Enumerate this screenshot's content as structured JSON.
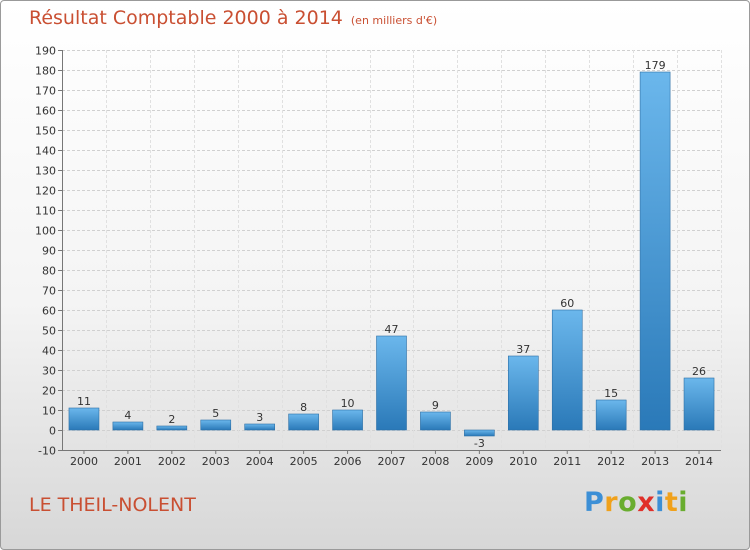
{
  "header": {
    "title": "Résultat Comptable 2000 à 2014",
    "unit": "(en milliers d'€)"
  },
  "footer": {
    "commune": "LE THEIL-NOLENT"
  },
  "logo": {
    "letters": [
      "P",
      "r",
      "o",
      "x",
      "i",
      "t",
      "i"
    ],
    "colors": [
      "#3c8fd6",
      "#f0a11b",
      "#69ad2f",
      "#e0302a",
      "#3c8fd6",
      "#f0a11b",
      "#69ad2f"
    ]
  },
  "colors": {
    "bar_top": "#6bb7ec",
    "bar_bottom": "#2a79b8",
    "title": "#c94f32"
  },
  "chart_data": {
    "type": "bar",
    "categories": [
      "2000",
      "2001",
      "2002",
      "2003",
      "2004",
      "2005",
      "2006",
      "2007",
      "2008",
      "2009",
      "2010",
      "2011",
      "2012",
      "2013",
      "2014"
    ],
    "values": [
      11,
      4,
      2,
      5,
      3,
      8,
      10,
      47,
      9,
      -3,
      37,
      60,
      15,
      179,
      26
    ],
    "value_labels": [
      "11",
      "4",
      "2",
      "5",
      "3",
      "8",
      "10",
      "47",
      "9",
      "-3",
      "37",
      "60",
      "15",
      "179",
      "26"
    ],
    "ylim": [
      -10,
      190
    ],
    "yticks": [
      -10,
      0,
      10,
      20,
      30,
      40,
      50,
      60,
      70,
      80,
      90,
      100,
      110,
      120,
      130,
      140,
      150,
      160,
      170,
      180,
      190
    ],
    "ytick_labels": [
      "-10",
      "0",
      "10",
      "20",
      "30",
      "40",
      "50",
      "60",
      "70",
      "80",
      "90",
      "100",
      "110",
      "120",
      "130",
      "140",
      "150",
      "160",
      "170",
      "180",
      "190"
    ],
    "grid": true
  }
}
